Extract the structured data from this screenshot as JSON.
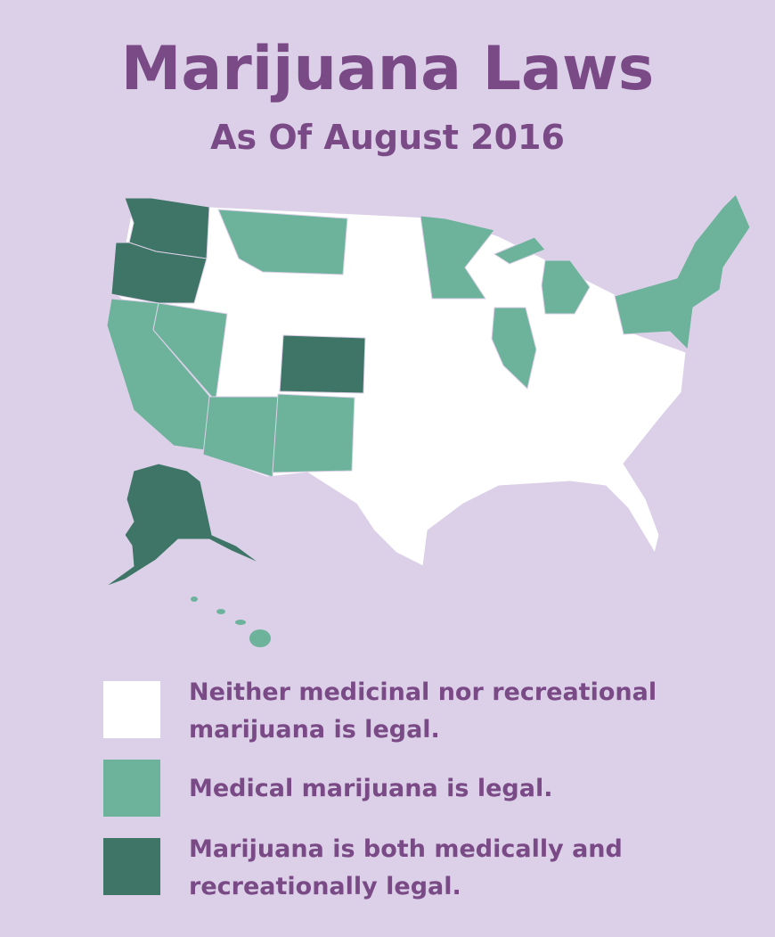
{
  "header": {
    "title": "Marijuana Laws",
    "subtitle": "As Of August 2016"
  },
  "legend": [
    {
      "lines": [
        "Neither medicinal nor recreational",
        "marijuana is legal."
      ]
    },
    {
      "lines": [
        "Medical marijuana is legal."
      ]
    },
    {
      "lines": [
        "Marijuana is both medically and",
        "recreationally  legal."
      ]
    }
  ]
}
